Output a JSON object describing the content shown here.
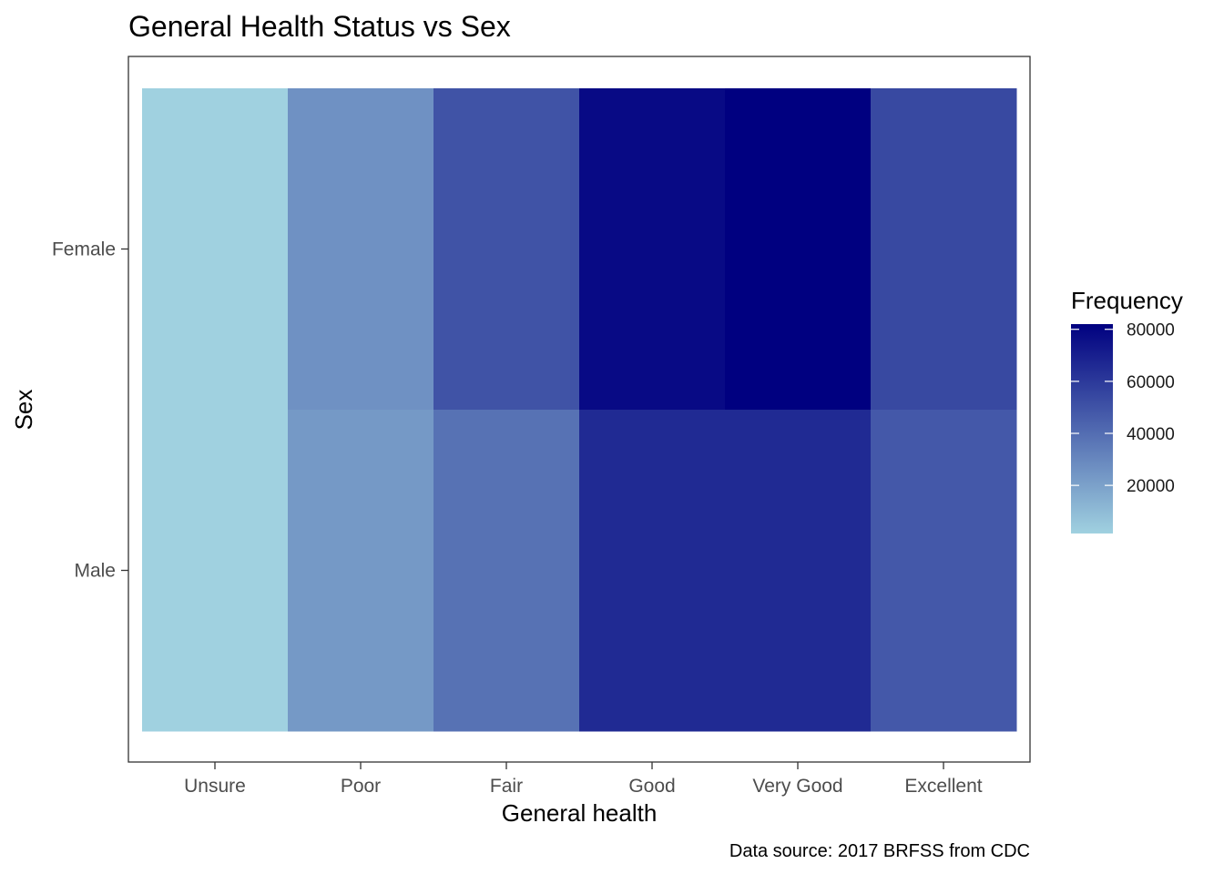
{
  "chart_data": {
    "type": "heatmap",
    "title": "General Health Status vs Sex",
    "xlabel": "General health",
    "ylabel": "Sex",
    "caption": "Data source: 2017 BRFSS from CDC",
    "x_categories": [
      "Unsure",
      "Poor",
      "Fair",
      "Good",
      "Very Good",
      "Excellent"
    ],
    "y_categories": [
      "Female",
      "Male"
    ],
    "values": [
      [
        1500,
        26000,
        50000,
        78000,
        82000,
        54000
      ],
      [
        1500,
        23000,
        38000,
        66000,
        66000,
        48000
      ]
    ],
    "legend": {
      "title": "Frequency",
      "ticks": [
        20000,
        40000,
        60000,
        80000
      ],
      "tick_labels": [
        "20000",
        "40000",
        "60000",
        "80000"
      ],
      "min": 1500,
      "max": 82000,
      "position": "right"
    },
    "colors": {
      "low": "#a0d1e0",
      "high": "#000080"
    },
    "grid": false
  }
}
